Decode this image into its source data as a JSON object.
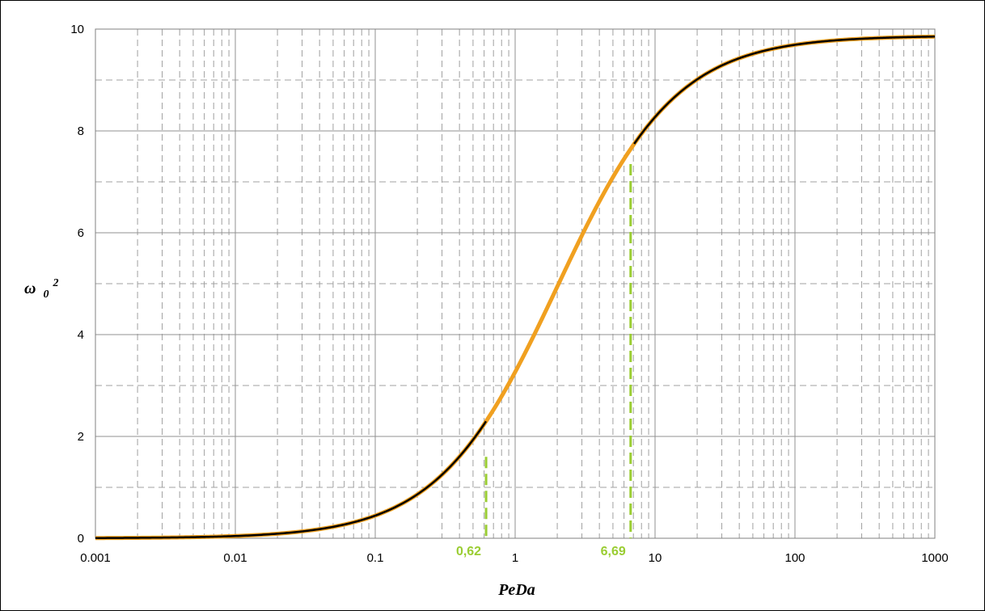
{
  "chart_data": {
    "type": "line",
    "title": "",
    "xlabel": "PeDa",
    "ylabel_main": "ω",
    "ylabel_sub": "0",
    "ylabel_sup": "2",
    "x_scale": "log",
    "xlim": [
      0.001,
      1000
    ],
    "ylim": [
      0,
      10
    ],
    "x_ticks": [
      0.001,
      0.01,
      0.1,
      1,
      10,
      100,
      1000
    ],
    "x_tick_labels": [
      "0.001",
      "0.01",
      "0.1",
      "1",
      "10",
      "100",
      "1000"
    ],
    "y_ticks": [
      0,
      2,
      4,
      6,
      8,
      10
    ],
    "y_tick_labels": [
      "0",
      "2",
      "4",
      "6",
      "8",
      "10"
    ],
    "grid": true,
    "curve_max": 9.87,
    "series": [
      {
        "color": "#000000",
        "x": [
          0.001,
          0.002,
          0.005,
          0.01,
          0.02,
          0.05,
          0.1,
          0.2,
          0.3,
          0.5,
          0.62,
          1,
          2,
          5,
          6.69,
          10,
          20,
          50,
          100,
          200,
          500,
          1000
        ],
        "y": [
          0.01,
          0.02,
          0.05,
          0.1,
          0.19,
          0.45,
          0.82,
          1.3,
          1.55,
          1.65,
          1.86,
          2.55,
          3.9,
          6.3,
          7.15,
          7.7,
          9.0,
          9.5,
          9.68,
          9.77,
          9.83,
          9.85
        ]
      },
      {
        "color": "#f0a020",
        "x": [
          0.62,
          1,
          2,
          5,
          6.69
        ],
        "y": [
          1.7,
          2.55,
          3.9,
          6.3,
          7.35
        ]
      }
    ],
    "markers": [
      {
        "x": 0.62,
        "y": 1.6,
        "label": "0,62",
        "color": "#9acd32"
      },
      {
        "x": 6.69,
        "y": 7.35,
        "label": "6,69",
        "color": "#9acd32"
      }
    ]
  }
}
